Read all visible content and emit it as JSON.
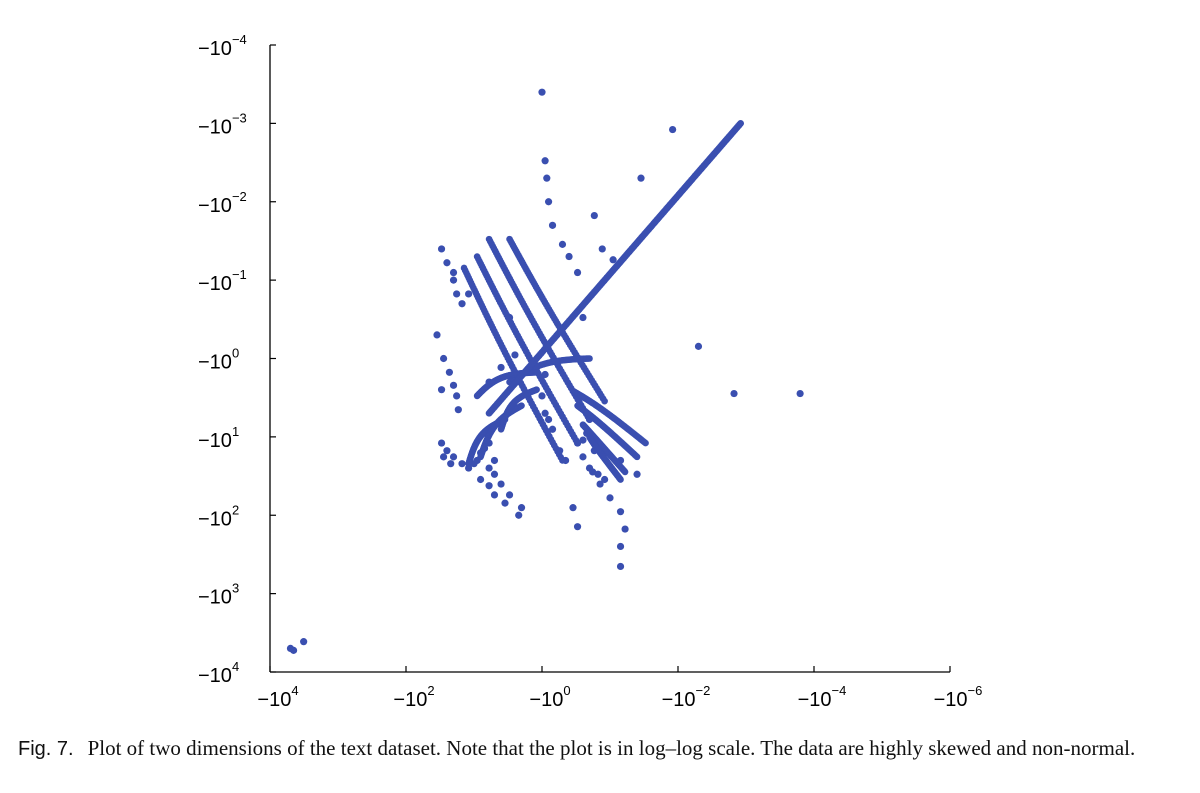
{
  "chart_data": {
    "type": "scatter",
    "title": "",
    "xlabel": "",
    "ylabel": "",
    "x_scale": "symlog-negative",
    "y_scale": "symlog-negative",
    "x_ticks": [
      {
        "value": -10000,
        "base": "−10",
        "exp": "4"
      },
      {
        "value": -100,
        "base": "−10",
        "exp": "2"
      },
      {
        "value": -1,
        "base": "−10",
        "exp": "0"
      },
      {
        "value": -0.01,
        "base": "−10",
        "exp": "−2"
      },
      {
        "value": -0.0001,
        "base": "−10",
        "exp": "−4"
      },
      {
        "value": -1e-06,
        "base": "−10",
        "exp": "−6"
      }
    ],
    "y_ticks": [
      {
        "value": -0.0001,
        "base": "−10",
        "exp": "−4"
      },
      {
        "value": -0.001,
        "base": "−10",
        "exp": "−3"
      },
      {
        "value": -0.01,
        "base": "−10",
        "exp": "−2"
      },
      {
        "value": -0.1,
        "base": "−10",
        "exp": "−1"
      },
      {
        "value": -1,
        "base": "−10",
        "exp": "0"
      },
      {
        "value": -10,
        "base": "−10",
        "exp": "1"
      },
      {
        "value": -100,
        "base": "−10",
        "exp": "2"
      },
      {
        "value": -1000,
        "base": "−10",
        "exp": "3"
      },
      {
        "value": -10000,
        "base": "−10",
        "exp": "4"
      }
    ],
    "xlim": [
      -10000,
      -1e-06
    ],
    "ylim": [
      -10000,
      -0.0001
    ],
    "grid": false,
    "legend": "none",
    "point_color": "#3a4fb0",
    "series": [
      {
        "points": [
          [
            -5000,
            -5000
          ],
          [
            -4500,
            -5300
          ],
          [
            -3200,
            -4100
          ],
          [
            -12,
            -0.15
          ],
          [
            -20,
            -0.08
          ],
          [
            -3,
            -0.3
          ],
          [
            -30,
            -2.5
          ],
          [
            -1,
            -0.0004
          ],
          [
            -0.012,
            -0.0012
          ],
          [
            -0.035,
            -0.005
          ],
          [
            -0.09,
            -0.055
          ],
          [
            -0.005,
            -0.7
          ],
          [
            -0.0015,
            -2.8
          ],
          [
            -0.00016,
            -2.8
          ],
          [
            -0.17,
            -15
          ],
          [
            -0.07,
            -20
          ],
          [
            -0.04,
            -30
          ],
          [
            -0.1,
            -60
          ],
          [
            -0.07,
            -90
          ],
          [
            -0.06,
            -150
          ],
          [
            -0.07,
            -250
          ],
          [
            -0.07,
            -450
          ],
          [
            -0.9,
            -0.003
          ],
          [
            -0.85,
            -0.005
          ],
          [
            -0.8,
            -0.01
          ],
          [
            -0.7,
            -0.02
          ],
          [
            -0.5,
            -0.035
          ],
          [
            -0.4,
            -0.05
          ],
          [
            -0.3,
            -0.08
          ],
          [
            -0.13,
            -0.04
          ],
          [
            -0.17,
            -0.015
          ],
          [
            -0.25,
            -0.3
          ],
          [
            -2.5,
            -0.9
          ],
          [
            -4,
            -1.3
          ],
          [
            -6,
            -2
          ],
          [
            -1.3,
            -1.1
          ],
          [
            -0.9,
            -1.6
          ],
          [
            -30,
            -0.04
          ],
          [
            -25,
            -0.06
          ],
          [
            -20,
            -0.1
          ],
          [
            -18,
            -0.15
          ],
          [
            -15,
            -0.2
          ],
          [
            -35,
            -0.5
          ],
          [
            -28,
            -1
          ],
          [
            -23,
            -1.5
          ],
          [
            -20,
            -2.2
          ],
          [
            -18,
            -3
          ],
          [
            -17,
            -4.5
          ],
          [
            -30,
            -12
          ],
          [
            -25,
            -15
          ],
          [
            -20,
            -18
          ],
          [
            -15,
            -22
          ],
          [
            -28,
            -18
          ],
          [
            -22,
            -22
          ],
          [
            -12,
            -25
          ],
          [
            -10,
            -22
          ],
          [
            -8,
            -16
          ],
          [
            -6,
            -12
          ],
          [
            -5,
            -20
          ],
          [
            -7,
            -14
          ],
          [
            -9,
            -20
          ],
          [
            -6,
            -25
          ],
          [
            -5,
            -30
          ],
          [
            -4,
            -40
          ],
          [
            -3,
            -55
          ],
          [
            -2,
            -80
          ],
          [
            -8,
            -35
          ],
          [
            -6,
            -42
          ],
          [
            -5,
            -55
          ],
          [
            -3.5,
            -70
          ],
          [
            -2.2,
            -100
          ],
          [
            -1,
            -3
          ],
          [
            -0.9,
            -5
          ],
          [
            -0.8,
            -6
          ],
          [
            -0.7,
            -8
          ],
          [
            -0.3,
            -12
          ],
          [
            -0.25,
            -18
          ],
          [
            -0.2,
            -25
          ],
          [
            -0.15,
            -30
          ],
          [
            -0.12,
            -35
          ],
          [
            -0.3,
            -140
          ],
          [
            -0.35,
            -80
          ],
          [
            -0.55,
            -15
          ],
          [
            -0.45,
            -20
          ],
          [
            -0.2,
            -6
          ],
          [
            -0.22,
            -9
          ],
          [
            -0.25,
            -11
          ],
          [
            -0.18,
            -28
          ],
          [
            -0.14,
            -40
          ]
        ],
        "bands": [
          {
            "x": [
              -3.0,
              -0.12
            ],
            "y": [
              -0.03,
              -3.5
            ]
          },
          {
            "x": [
              -6.0,
              -0.2
            ],
            "y": [
              -0.03,
              -6
            ]
          },
          {
            "x": [
              -9.0,
              -0.3
            ],
            "y": [
              -0.05,
              -12
            ]
          },
          {
            "x": [
              -14,
              -0.5
            ],
            "y": [
              -0.07,
              -20
            ]
          },
          {
            "x": [
              -0.35,
              -0.03
            ],
            "y": [
              -2.6,
              -12
            ]
          },
          {
            "x": [
              -0.3,
              -0.04
            ],
            "y": [
              -4,
              -18
            ]
          },
          {
            "x": [
              -0.25,
              -0.06
            ],
            "y": [
              -7,
              -28
            ]
          },
          {
            "x": [
              -0.2,
              -0.07
            ],
            "y": [
              -10,
              -35
            ]
          },
          {
            "x": [
              -3.5,
              -12
            ],
            "y": [
              -6,
              -22
            ]
          },
          {
            "x": [
              -2.0,
              -8
            ],
            "y": [
              -4,
              -18
            ]
          },
          {
            "x": [
              -1.2,
              -4
            ],
            "y": [
              -2.5,
              -8
            ]
          },
          {
            "x": [
              -3,
              -0.2
            ],
            "y": [
              -2,
              -1
            ]
          },
          {
            "x": [
              -9,
              -1.2
            ],
            "y": [
              -3,
              -1.5
            ]
          }
        ],
        "diagonal": {
          "x": [
            -6,
            -0.0012
          ],
          "y": [
            -5,
            -0.001
          ]
        }
      }
    ]
  },
  "caption": {
    "label": "Fig. 7.",
    "text": "Plot of two dimensions of the text dataset. Note that the plot is in log–log scale. The data are highly skewed and non-normal."
  }
}
